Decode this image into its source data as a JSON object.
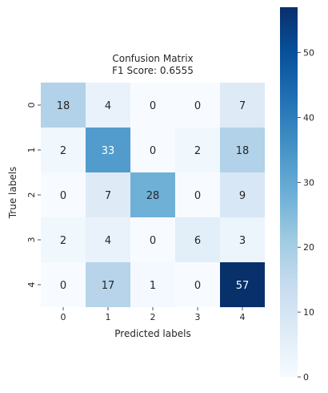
{
  "chart_data": {
    "type": "heatmap",
    "title_line1": "Confusion Matrix",
    "title_line2": "F1 Score: 0.6555",
    "xlabel": "Predicted labels",
    "ylabel": "True labels",
    "x_categories": [
      "0",
      "1",
      "2",
      "3",
      "4"
    ],
    "y_categories": [
      "0",
      "1",
      "2",
      "3",
      "4"
    ],
    "matrix": [
      [
        18,
        4,
        0,
        0,
        7
      ],
      [
        2,
        33,
        0,
        2,
        18
      ],
      [
        0,
        7,
        28,
        0,
        9
      ],
      [
        2,
        4,
        0,
        6,
        3
      ],
      [
        0,
        17,
        1,
        0,
        57
      ]
    ],
    "colormap": "Blues",
    "vmin": 0,
    "vmax": 57,
    "colorbar_ticks": [
      "0",
      "10",
      "20",
      "30",
      "40",
      "50"
    ],
    "light_text_color": "#262626",
    "dark_text_color": "#ffffff"
  }
}
